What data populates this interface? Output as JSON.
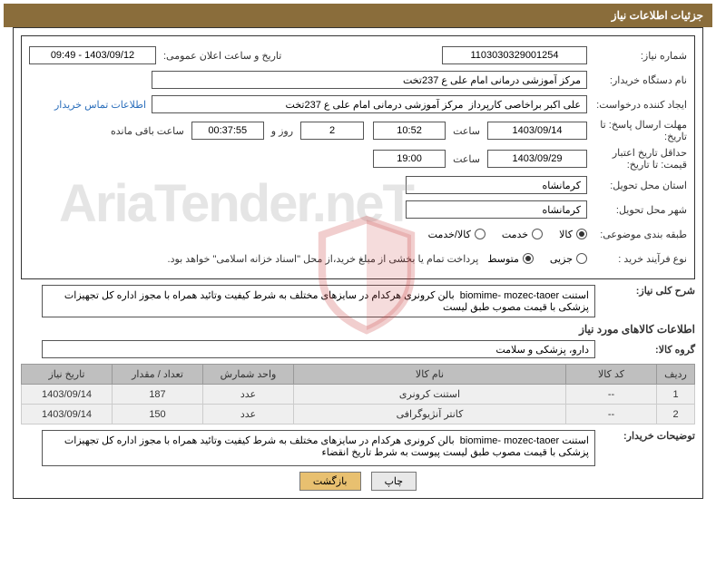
{
  "header": {
    "title": "جزئیات اطلاعات نیاز"
  },
  "fields": {
    "need_no_label": "شماره نیاز:",
    "need_no": "1103030329001254",
    "announce_label": "تاریخ و ساعت اعلان عمومی:",
    "announce": "1403/09/12 - 09:49",
    "buyer_label": "نام دستگاه خریدار:",
    "buyer": "مرکز آموزشی درمانی امام علی ع 237تخت",
    "requester_label": "ایجاد کننده درخواست:",
    "requester": "علی اکبر براخاصی کارپرداز  مرکز آموزشی درمانی امام علی ع 237تخت",
    "contact_link": "اطلاعات تماس خریدار",
    "deadline_label": "مهلت ارسال پاسخ: تا تاریخ:",
    "deadline_date": "1403/09/14",
    "time_label": "ساعت",
    "deadline_time": "10:52",
    "days_remain": "2",
    "days_label": "روز و",
    "time_remain": "00:37:55",
    "remain_label": "ساعت باقی مانده",
    "validity_label": "حداقل تاریخ اعتبار قیمت: تا تاریخ:",
    "validity_date": "1403/09/29",
    "validity_time": "19:00",
    "province_label": "استان محل تحویل:",
    "province": "کرمانشاه",
    "city_label": "شهر محل تحویل:",
    "city": "کرمانشاه",
    "category_label": "طبقه بندی موضوعی:",
    "cat_goods": "کالا",
    "cat_service": "خدمت",
    "cat_both": "کالا/خدمت",
    "process_label": "نوع فرآیند خرید :",
    "proc_small": "جزیی",
    "proc_medium": "متوسط",
    "payment_note": "پرداخت تمام یا بخشی از مبلغ خرید،از محل \"اسناد خزانه اسلامی\" خواهد بود.",
    "desc_label": "شرح کلی نیاز:",
    "desc_text": "استنت biomime- mozec-taoer  بالن کرونری هرکدام در سایزهای مختلف به شرط کیفیت وتائید همراه با مجوز اداره کل تجهیزات پزشکی با قیمت مصوب طبق لیست",
    "items_title": "اطلاعات کالاهای مورد نیاز",
    "group_label": "گروه کالا:",
    "group": "دارو، پزشکی و سلامت",
    "buyer_notes_label": "توضیحات خریدار:",
    "buyer_notes": "استنت biomime- mozec-taoer  بالن کرونری هرکدام در سایزهای مختلف به شرط کیفیت وتائید همراه با مجوز اداره کل تجهیزات پزشکی با قیمت مصوب طبق لیست پیوست به شرط تاریخ انقضاء"
  },
  "table": {
    "headers": {
      "row": "ردیف",
      "code": "کد کالا",
      "name": "نام کالا",
      "unit": "واحد شمارش",
      "qty": "تعداد / مقدار",
      "date": "تاریخ نیاز"
    },
    "rows": [
      {
        "row": "1",
        "code": "--",
        "name": "استنت کرونری",
        "unit": "عدد",
        "qty": "187",
        "date": "1403/09/14"
      },
      {
        "row": "2",
        "code": "--",
        "name": "کانتر آنژیوگرافی",
        "unit": "عدد",
        "qty": "150",
        "date": "1403/09/14"
      }
    ]
  },
  "buttons": {
    "print": "چاپ",
    "back": "بازگشت"
  },
  "watermark": "AriaTender.neT",
  "colors": {
    "header_bg": "#8a6d3b",
    "th_bg": "#bfbfbf",
    "td_bg": "#efefef",
    "link": "#2a6ebb",
    "btn_back": "#e8c070",
    "wm_red": "rgba(200,60,60,0.25)"
  }
}
